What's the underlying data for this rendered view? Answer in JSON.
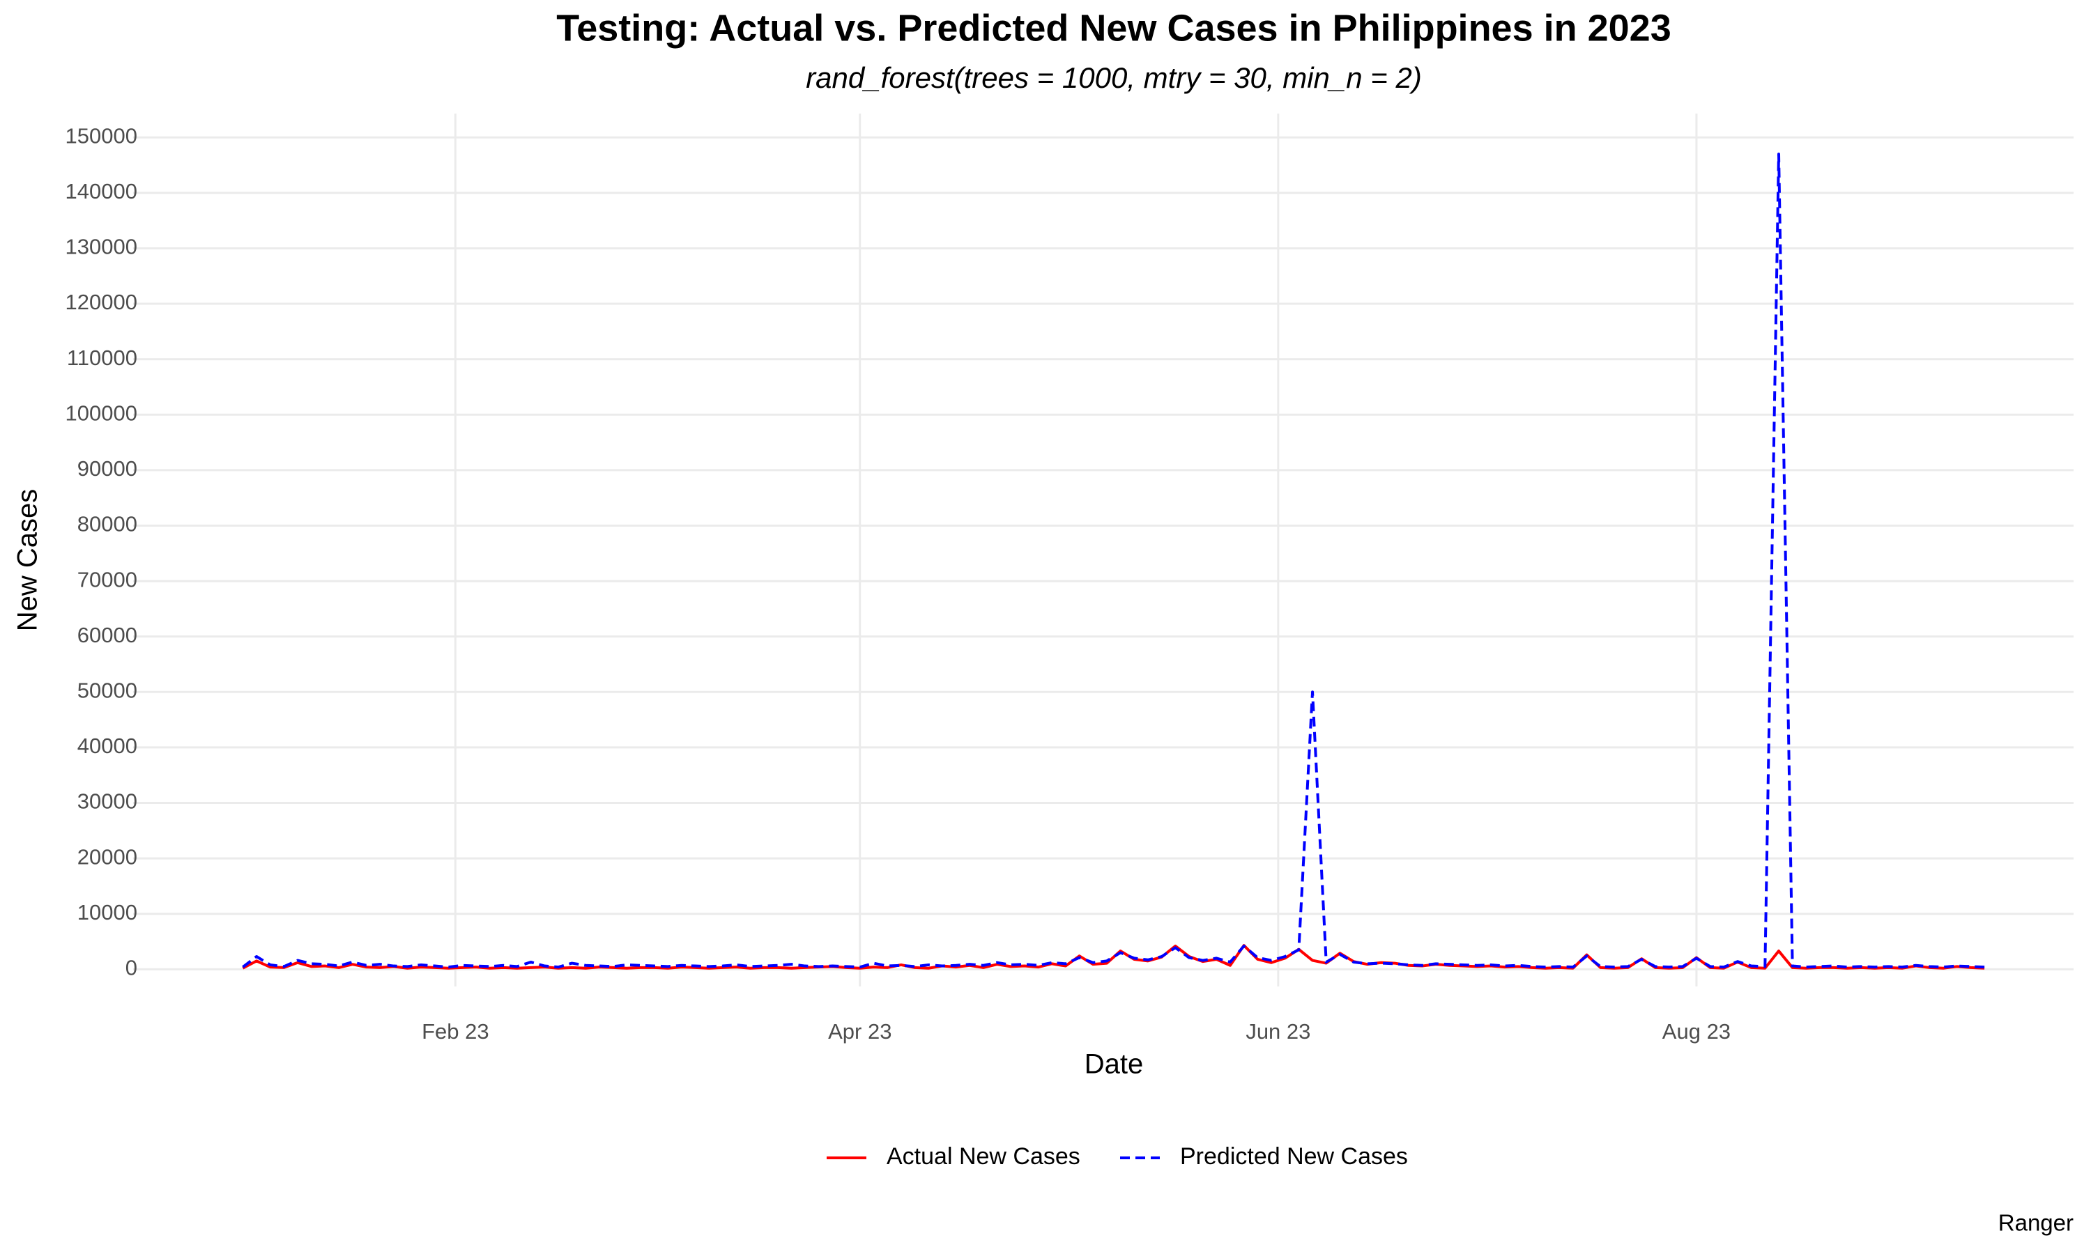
{
  "chart_data": {
    "type": "line",
    "title": "Testing: Actual vs. Predicted New Cases in Philippines in 2023",
    "subtitle": "rand_forest(trees = 1000, mtry = 30, min_n = 2)",
    "x_label": "Date",
    "y_label": "New Cases",
    "caption": "Ranger",
    "x": [
      1,
      3,
      5,
      7,
      9,
      11,
      13,
      15,
      17,
      19,
      21,
      23,
      25,
      27,
      29,
      31,
      33,
      35,
      37,
      39,
      41,
      43,
      45,
      47,
      49,
      51,
      53,
      55,
      57,
      59,
      61,
      63,
      65,
      67,
      69,
      71,
      73,
      75,
      77,
      79,
      81,
      83,
      85,
      87,
      89,
      91,
      93,
      95,
      97,
      99,
      101,
      103,
      105,
      107,
      109,
      111,
      113,
      115,
      117,
      119,
      121,
      123,
      125,
      127,
      129,
      131,
      133,
      135,
      137,
      139,
      141,
      143,
      145,
      147,
      149,
      151,
      153,
      155,
      157,
      159,
      161,
      163,
      165,
      167,
      169,
      171,
      173,
      175,
      177,
      179,
      181,
      183,
      185,
      187,
      189,
      191,
      193,
      195,
      197,
      199,
      201,
      203,
      205,
      207,
      209,
      211,
      213,
      215,
      217,
      219,
      221,
      223,
      225,
      227,
      229,
      231,
      233,
      235,
      237,
      239,
      241,
      243,
      245,
      247,
      249,
      251,
      253,
      255
    ],
    "series": [
      {
        "name": "Actual New Cases",
        "color": "#ff0000",
        "dash": false,
        "values": [
          200,
          1500,
          400,
          300,
          1200,
          500,
          600,
          300,
          900,
          400,
          300,
          500,
          200,
          400,
          300,
          200,
          300,
          400,
          200,
          300,
          200,
          300,
          400,
          200,
          300,
          200,
          400,
          300,
          200,
          300,
          300,
          200,
          400,
          300,
          200,
          300,
          400,
          200,
          300,
          300,
          200,
          300,
          400,
          500,
          300,
          200,
          400,
          300,
          800,
          300,
          200,
          600,
          400,
          700,
          300,
          900,
          500,
          600,
          400,
          1000,
          600,
          2400,
          900,
          1100,
          3300,
          1800,
          1500,
          2200,
          4200,
          2300,
          1400,
          1800,
          700,
          4300,
          1800,
          1200,
          2000,
          3600,
          1600,
          1100,
          2900,
          1400,
          900,
          1200,
          1100,
          700,
          600,
          900,
          700,
          600,
          500,
          600,
          400,
          500,
          300,
          200,
          300,
          200,
          2600,
          300,
          200,
          300,
          1900,
          300,
          200,
          300,
          2100,
          300,
          200,
          1300,
          300,
          200,
          3300,
          300,
          200,
          300,
          300,
          200,
          300,
          200,
          300,
          200,
          600,
          300,
          200,
          500,
          300,
          200
        ]
      },
      {
        "name": "Predicted New Cases",
        "color": "#0000ff",
        "dash": true,
        "values": [
          400,
          2300,
          800,
          500,
          1600,
          1000,
          900,
          600,
          1300,
          700,
          900,
          600,
          500,
          800,
          600,
          400,
          700,
          600,
          500,
          700,
          500,
          1300,
          600,
          400,
          1100,
          700,
          600,
          500,
          800,
          700,
          600,
          500,
          700,
          600,
          500,
          600,
          800,
          500,
          600,
          700,
          900,
          600,
          500,
          600,
          500,
          400,
          1100,
          600,
          700,
          500,
          800,
          600,
          700,
          900,
          700,
          1200,
          800,
          900,
          700,
          1200,
          1000,
          2100,
          1200,
          1500,
          3000,
          2000,
          1700,
          2300,
          3900,
          2100,
          1600,
          2000,
          1300,
          4200,
          2100,
          1600,
          2300,
          3500,
          50000,
          1300,
          2700,
          1300,
          1000,
          1100,
          1000,
          800,
          700,
          1000,
          900,
          800,
          700,
          800,
          600,
          700,
          500,
          400,
          500,
          400,
          2400,
          500,
          400,
          500,
          1800,
          500,
          400,
          500,
          2000,
          500,
          400,
          1400,
          600,
          500,
          147000,
          600,
          400,
          500,
          600,
          400,
          500,
          400,
          500,
          400,
          700,
          500,
          400,
          600,
          500,
          400
        ]
      }
    ],
    "xlim": [
      -15,
      268
    ],
    "xticks": [
      {
        "value": 32,
        "label": "Feb 23"
      },
      {
        "value": 91,
        "label": "Apr 23"
      },
      {
        "value": 152,
        "label": "Jun 23"
      },
      {
        "value": 213,
        "label": "Aug 23"
      }
    ],
    "ylim": [
      -3100,
      154300
    ],
    "yticks": [
      0,
      10000,
      20000,
      30000,
      40000,
      50000,
      60000,
      70000,
      80000,
      90000,
      100000,
      110000,
      120000,
      130000,
      140000,
      150000
    ],
    "grid": true,
    "legend": "bottom"
  }
}
